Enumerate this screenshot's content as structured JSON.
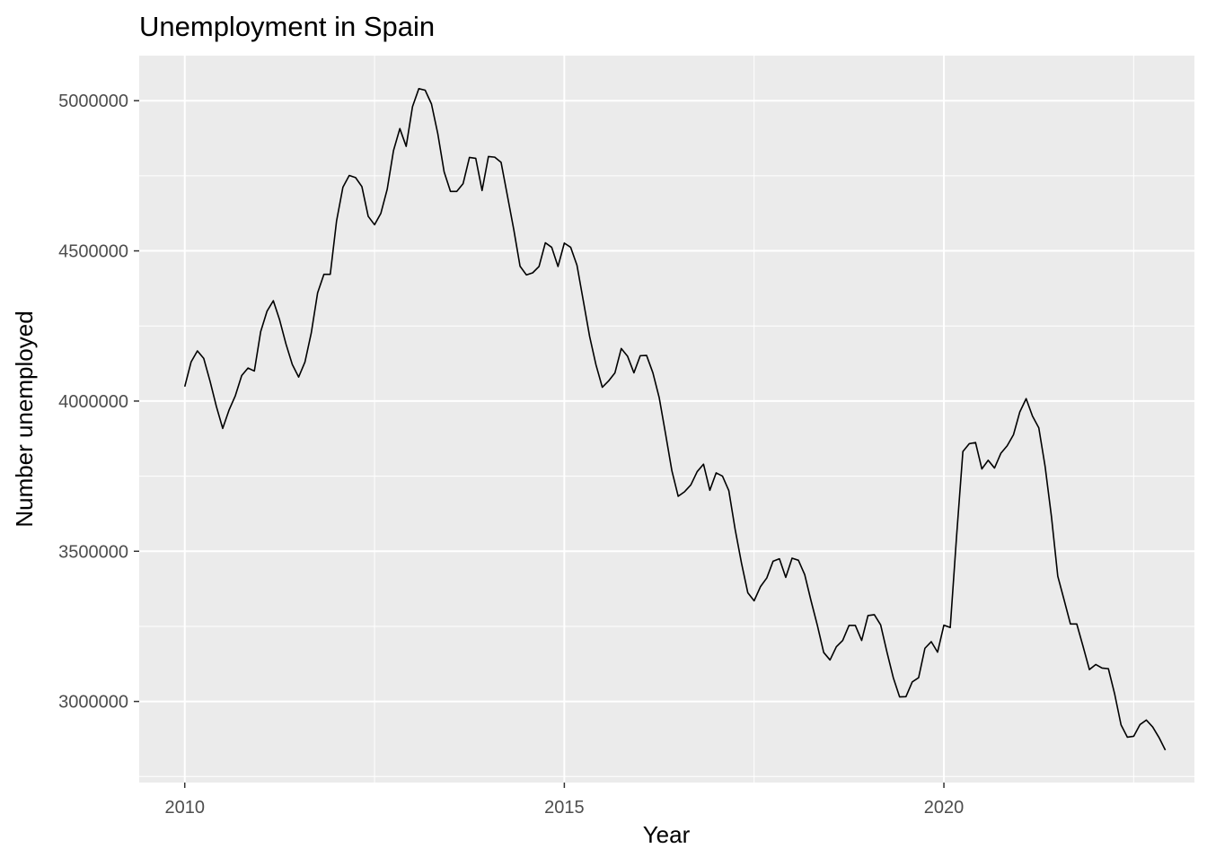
{
  "chart_data": {
    "type": "line",
    "title": "Unemployment in Spain",
    "xlabel": "Year",
    "ylabel": "Number unemployed",
    "xlim": [
      2009.4,
      2023.3
    ],
    "ylim": [
      2730000,
      5150000
    ],
    "x_ticks": [
      2010,
      2015,
      2020
    ],
    "x_tick_labels": [
      "2010",
      "2015",
      "2020"
    ],
    "y_ticks": [
      3000000,
      3500000,
      4000000,
      4500000,
      5000000
    ],
    "y_tick_labels": [
      "3000000",
      "3500000",
      "4000000",
      "4500000",
      "5000000"
    ],
    "grid": true,
    "colors": {
      "panel_background": "#ebebeb",
      "grid_line": "#ffffff",
      "series_line": "#000000",
      "tick_label": "#4d4d4d"
    },
    "series": [
      {
        "start_year": 2010,
        "frequency": "monthly",
        "values": [
          4048000,
          4130000,
          4167000,
          4142000,
          4066000,
          3982000,
          3909000,
          3970000,
          4018000,
          4085000,
          4110000,
          4100000,
          4231000,
          4299000,
          4334000,
          4270000,
          4190000,
          4122000,
          4080000,
          4130000,
          4227000,
          4360000,
          4422000,
          4422000,
          4600000,
          4712000,
          4751000,
          4744000,
          4714000,
          4615000,
          4587000,
          4625000,
          4705000,
          4834000,
          4907000,
          4848000,
          4980000,
          5040000,
          5035000,
          4989000,
          4890000,
          4763000,
          4698000,
          4698000,
          4724000,
          4811000,
          4808000,
          4701000,
          4814000,
          4812000,
          4795000,
          4684000,
          4572000,
          4449000,
          4420000,
          4427000,
          4448000,
          4527000,
          4512000,
          4448000,
          4526000,
          4512000,
          4452000,
          4334000,
          4215000,
          4121000,
          4046000,
          4067000,
          4094000,
          4175000,
          4149000,
          4094000,
          4151000,
          4152000,
          4094000,
          4011000,
          3891000,
          3768000,
          3683000,
          3698000,
          3721000,
          3765000,
          3790000,
          3703000,
          3761000,
          3750000,
          3702000,
          3573000,
          3461000,
          3362000,
          3335000,
          3382000,
          3411000,
          3467000,
          3475000,
          3413000,
          3477000,
          3470000,
          3422000,
          3335000,
          3253000,
          3163000,
          3138000,
          3182000,
          3203000,
          3253000,
          3253000,
          3203000,
          3286000,
          3289000,
          3255000,
          3164000,
          3079000,
          3015000,
          3016000,
          3065000,
          3079000,
          3177000,
          3199000,
          3164000,
          3254000,
          3246000,
          3549000,
          3832000,
          3858000,
          3862000,
          3774000,
          3803000,
          3777000,
          3826000,
          3851000,
          3888000,
          3964000,
          4008000,
          3950000,
          3911000,
          3782000,
          3615000,
          3417000,
          3338000,
          3258000,
          3258000,
          3183000,
          3106000,
          3123000,
          3111000,
          3109000,
          3024000,
          2922000,
          2881000,
          2884000,
          2923000,
          2938000,
          2915000,
          2880000,
          2838000
        ]
      }
    ]
  }
}
